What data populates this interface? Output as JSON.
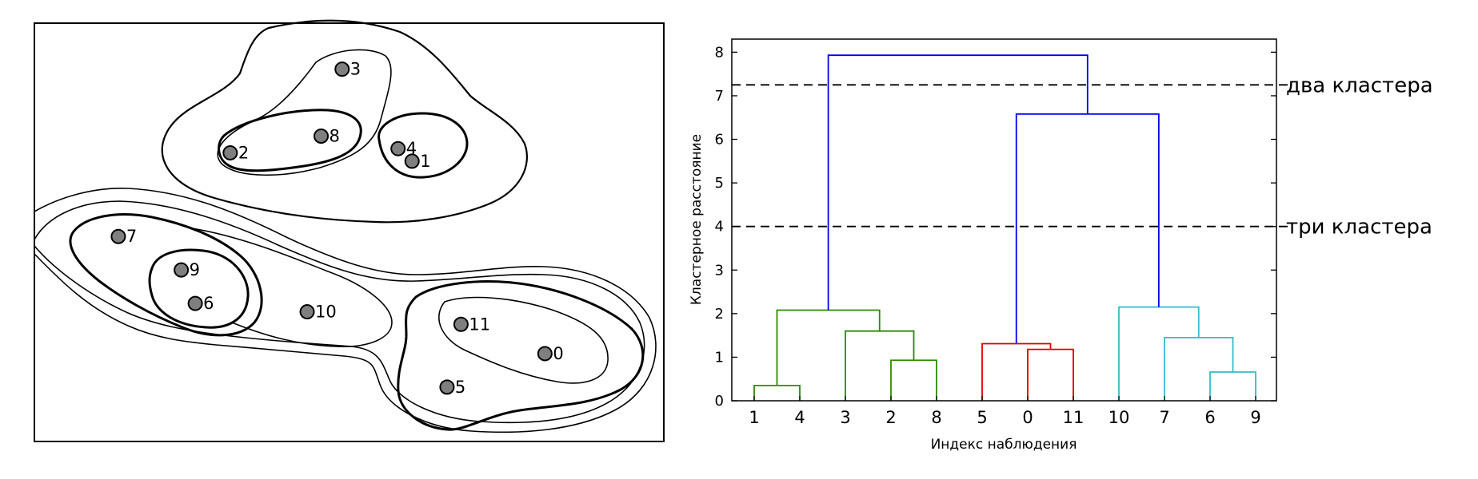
{
  "scatter": {
    "type": "scatter",
    "points": [
      {
        "id": "0",
        "x": 7.3,
        "y": 2.1
      },
      {
        "id": "1",
        "x": 5.4,
        "y": 6.7
      },
      {
        "id": "2",
        "x": 2.8,
        "y": 6.9
      },
      {
        "id": "3",
        "x": 4.4,
        "y": 8.9
      },
      {
        "id": "4",
        "x": 5.2,
        "y": 7.0
      },
      {
        "id": "5",
        "x": 5.9,
        "y": 1.3
      },
      {
        "id": "6",
        "x": 2.3,
        "y": 3.3
      },
      {
        "id": "7",
        "x": 1.2,
        "y": 4.9
      },
      {
        "id": "8",
        "x": 4.1,
        "y": 7.3
      },
      {
        "id": "9",
        "x": 2.1,
        "y": 4.1
      },
      {
        "id": "10",
        "x": 3.9,
        "y": 3.1
      },
      {
        "id": "11",
        "x": 6.1,
        "y": 2.8
      }
    ]
  },
  "chart_data": {
    "type": "dendrogram",
    "leaf_order": [
      "1",
      "4",
      "3",
      "2",
      "8",
      "5",
      "0",
      "11",
      "10",
      "7",
      "6",
      "9"
    ],
    "yticks": [
      0,
      1,
      2,
      3,
      4,
      5,
      6,
      7,
      8
    ],
    "ylim": [
      0,
      8.3
    ],
    "xlabel": "Индекс наблюдения",
    "ylabel": "Кластерное расстояние",
    "links": [
      {
        "a": "1",
        "b": "4",
        "height": 0.35,
        "color": "#2e8b00"
      },
      {
        "a": "2",
        "b": "8",
        "height": 0.93,
        "color": "#2e8b00"
      },
      {
        "a": "3",
        "b": "2,8",
        "height": 1.6,
        "color": "#2e8b00"
      },
      {
        "a": "1,4",
        "b": "3,2,8",
        "height": 2.08,
        "color": "#2e8b00"
      },
      {
        "a": "0",
        "b": "11",
        "height": 1.18,
        "color": "#dd0000"
      },
      {
        "a": "5",
        "b": "0,11",
        "height": 1.31,
        "color": "#dd0000"
      },
      {
        "a": "6",
        "b": "9",
        "height": 0.66,
        "color": "#33bbcc"
      },
      {
        "a": "7",
        "b": "6,9",
        "height": 1.45,
        "color": "#33bbcc"
      },
      {
        "a": "10",
        "b": "7,6,9",
        "height": 2.15,
        "color": "#33bbcc"
      },
      {
        "a": "5,0,11",
        "b": "10,7,6,9",
        "height": 6.58,
        "color": "#0000ee"
      },
      {
        "a": "1,4,3,2,8",
        "b": "5,0,11,10,7,6,9",
        "height": 7.93,
        "color": "#0000ee"
      }
    ],
    "cut_lines": [
      {
        "height": 7.25,
        "label": "два кластера"
      },
      {
        "height": 4.0,
        "label": "три кластера"
      }
    ]
  }
}
